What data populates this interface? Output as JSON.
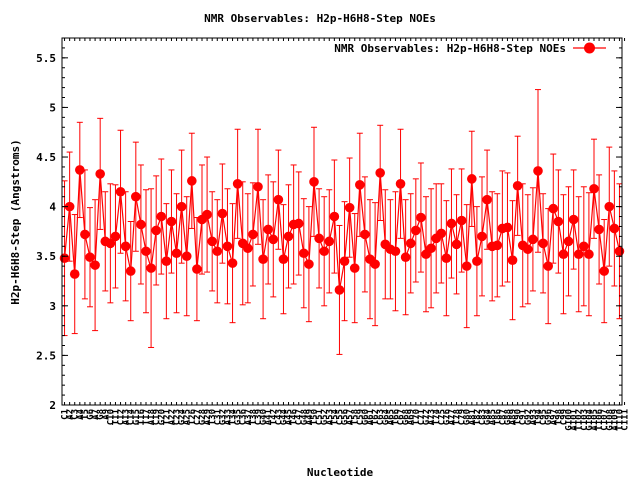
{
  "chart_data": {
    "type": "line",
    "title": "NMR Observables: H2p-H6H8-Step NOEs",
    "xlabel": "Nucleotide",
    "ylabel": "H2p-H6H8-Step (Angstroms)",
    "ylim": [
      2,
      5.7
    ],
    "yticks": [
      "2",
      "2.5",
      "3",
      "3.5",
      "4",
      "4.5",
      "5",
      "5.5"
    ],
    "grid": false,
    "legend_position": "top-right",
    "colors": {
      "series": "#ff0000",
      "axis": "#000000"
    },
    "series": [
      {
        "name": "NMR Observables: H2p-H6H8-Step NOEs",
        "values": [
          3.48,
          4.0,
          3.32,
          4.37,
          3.72,
          3.49,
          3.41,
          4.33,
          3.65,
          3.63,
          3.7,
          4.15,
          3.6,
          3.35,
          4.1,
          3.82,
          3.55,
          3.38,
          3.76,
          3.9,
          3.45,
          3.85,
          3.53,
          4.0,
          3.5,
          4.26,
          3.37,
          3.87,
          3.92,
          3.65,
          3.55,
          3.93,
          3.6,
          3.43,
          4.23,
          3.63,
          3.58,
          3.72,
          4.2,
          3.47,
          3.77,
          3.67,
          4.07,
          3.47,
          3.7,
          3.82,
          3.83,
          3.53,
          3.42,
          4.25,
          3.68,
          3.55,
          3.65,
          3.9,
          3.16,
          3.45,
          3.99,
          3.38,
          4.22,
          3.72,
          3.47,
          3.42,
          4.34,
          3.62,
          3.57,
          3.55,
          4.23,
          3.49,
          3.63,
          3.76,
          3.89,
          3.52,
          3.58,
          3.68,
          3.73,
          3.48,
          3.83,
          3.62,
          3.86,
          3.4,
          4.28,
          3.45,
          3.7,
          4.07,
          3.6,
          3.61,
          3.78,
          3.79,
          3.46,
          4.21,
          3.61,
          3.57,
          3.67,
          4.36,
          3.63,
          3.4,
          3.98,
          3.85,
          3.52,
          3.65,
          3.87,
          3.52,
          3.6,
          3.52,
          4.18,
          3.77,
          3.35,
          4.0,
          3.78,
          3.55
        ],
        "errors": [
          0.78,
          0.55,
          0.6,
          0.48,
          0.65,
          0.5,
          0.66,
          0.56,
          0.5,
          0.6,
          0.52,
          0.62,
          0.55,
          0.5,
          0.55,
          0.6,
          0.62,
          0.8,
          0.55,
          0.58,
          0.58,
          0.52,
          0.6,
          0.57,
          0.6,
          0.48,
          0.52,
          0.55,
          0.58,
          0.5,
          0.52,
          0.5,
          0.58,
          0.6,
          0.55,
          0.62,
          0.55,
          0.52,
          0.58,
          0.6,
          0.55,
          0.58,
          0.5,
          0.55,
          0.52,
          0.6,
          0.52,
          0.55,
          0.58,
          0.55,
          0.5,
          0.55,
          0.52,
          0.57,
          0.65,
          0.6,
          0.5,
          0.55,
          0.52,
          0.58,
          0.6,
          0.62,
          0.48,
          0.55,
          0.5,
          0.6,
          0.55,
          0.58,
          0.5,
          0.52,
          0.55,
          0.58,
          0.6,
          0.55,
          0.5,
          0.58,
          0.55,
          0.5,
          0.52,
          0.62,
          0.48,
          0.55,
          0.6,
          0.5,
          0.55,
          0.52,
          0.58,
          0.55,
          0.6,
          0.5,
          0.62,
          0.55,
          0.52,
          0.82,
          0.5,
          0.58,
          0.55,
          0.52,
          0.6,
          0.55,
          0.5,
          0.58,
          0.6,
          0.62,
          0.5,
          0.55,
          0.52,
          0.6,
          0.58,
          0.68
        ]
      }
    ],
    "x_tick_labels": [
      "C1",
      "A2",
      "C3",
      "A4",
      "T5",
      "G6",
      "A7",
      "G8",
      "A9",
      "C10",
      "T11",
      "C12",
      "A13",
      "C14",
      "G15",
      "T16",
      "T17",
      "A18",
      "C19",
      "G20",
      "T21",
      "A22",
      "C23",
      "G24",
      "A25",
      "T26",
      "C27",
      "G28",
      "A29",
      "T30",
      "C31",
      "G32",
      "A33",
      "T34",
      "G35",
      "C36",
      "A37",
      "T38",
      "C39",
      "G40",
      "A41",
      "T42",
      "C43",
      "G44",
      "A45",
      "T46",
      "C47",
      "G48",
      "A49",
      "T50",
      "C51",
      "G52",
      "A53",
      "T54",
      "C55",
      "G56",
      "A57",
      "T58",
      "C59",
      "G60",
      "A61",
      "T62",
      "C63",
      "G64",
      "A65",
      "T66",
      "C67",
      "G68",
      "A69",
      "T70",
      "C71",
      "G72",
      "A73",
      "T74",
      "C75",
      "G76",
      "A77",
      "T78",
      "C79",
      "G80",
      "A81",
      "T82",
      "C83",
      "G84",
      "A85",
      "T86",
      "C87",
      "G88",
      "A89",
      "T90",
      "C91",
      "G92",
      "A93",
      "T94",
      "C95",
      "G96",
      "A97",
      "T98",
      "C99",
      "G100",
      "A101",
      "T102",
      "C103",
      "G104",
      "A105",
      "T106",
      "C107",
      "G108",
      "A109",
      "T110",
      "C111"
    ]
  }
}
